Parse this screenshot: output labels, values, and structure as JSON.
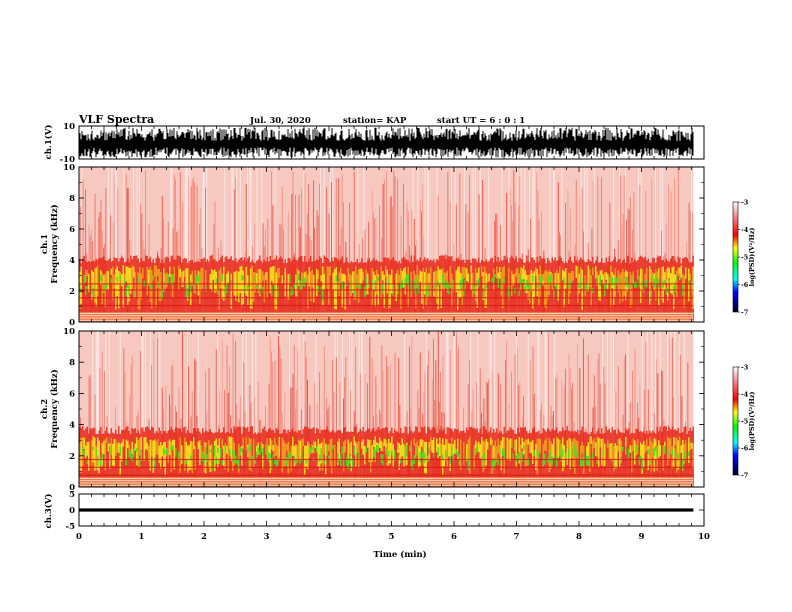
{
  "header": {
    "title": "VLF Spectra",
    "date": "Jul. 30, 2020",
    "station": "station= KAP",
    "start": "start UT =  6 : 0 : 1"
  },
  "chart_data": [
    {
      "type": "line",
      "name": "ch1-waveform",
      "ylabel": "ch.1(V)",
      "ylim": [
        -10,
        10
      ],
      "ytick_labels": [
        "10",
        "-10"
      ],
      "xlim": [
        0,
        10
      ],
      "data_extent_x": 9.83
    },
    {
      "type": "heatmap",
      "name": "ch1-spectrogram",
      "ylabel": "ch.1\nFrequency (kHz)",
      "ylim": [
        0,
        10
      ],
      "ytick_labels": [
        "0",
        "2",
        "4",
        "6",
        "8",
        "10"
      ],
      "xlim": [
        0,
        10
      ],
      "data_extent_x": 9.83,
      "colorbar": {
        "label": "log(PSD)(V²/Hz)",
        "range": [
          -7,
          -3
        ],
        "tick_labels": [
          "-3",
          "-4",
          "-5",
          "-6",
          "-7"
        ]
      }
    },
    {
      "type": "heatmap",
      "name": "ch2-spectrogram",
      "ylabel": "ch.2\nFrequency (kHz)",
      "ylim": [
        0,
        10
      ],
      "ytick_labels": [
        "0",
        "2",
        "4",
        "6",
        "8",
        "10"
      ],
      "xlim": [
        0,
        10
      ],
      "data_extent_x": 9.83,
      "colorbar": {
        "label": "log(PSD)(V²/Hz)",
        "range": [
          -7,
          -3
        ],
        "tick_labels": [
          "-3",
          "-4",
          "-5",
          "-6",
          "-7"
        ]
      }
    },
    {
      "type": "line",
      "name": "ch3-waveform",
      "ylabel": "ch.3(V)",
      "ylim": [
        -5,
        5
      ],
      "ytick_labels": [
        "5",
        "0",
        "-5"
      ],
      "xlim": [
        0,
        10
      ],
      "data_extent_x": 9.83,
      "xlabel": "Time (min)",
      "xtick_labels": [
        "0",
        "1",
        "2",
        "3",
        "4",
        "5",
        "6",
        "7",
        "8",
        "9",
        "10"
      ]
    }
  ]
}
